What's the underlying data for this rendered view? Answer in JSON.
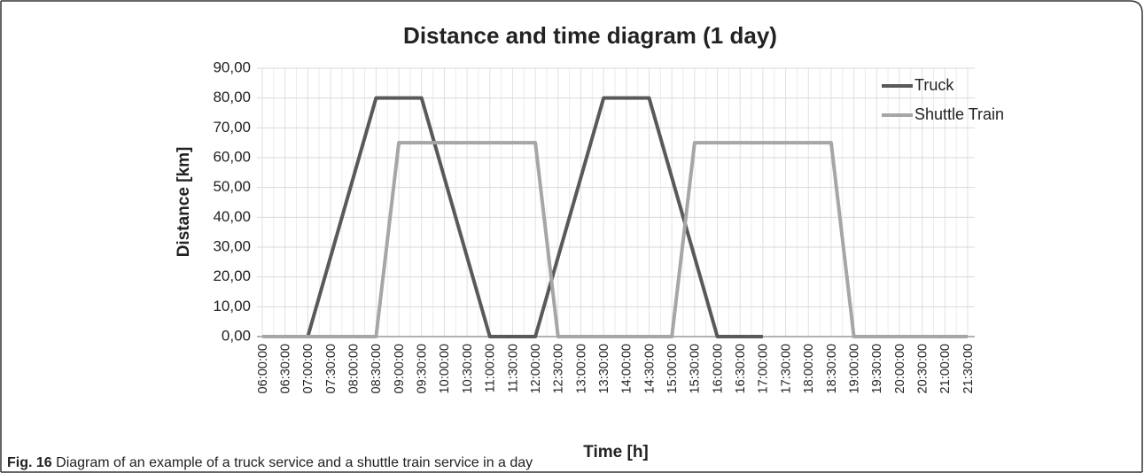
{
  "chart_data": {
    "type": "line",
    "title": "Distance and time diagram (1 day)",
    "x_label": "Time [h]",
    "y_label": "Distance [km]",
    "categories": [
      "06:00:00",
      "06:30:00",
      "07:00:00",
      "07:30:00",
      "08:00:00",
      "08:30:00",
      "09:00:00",
      "09:30:00",
      "10:00:00",
      "10:30:00",
      "11:00:00",
      "11:30:00",
      "12:00:00",
      "12:30:00",
      "13:00:00",
      "13:30:00",
      "14:00:00",
      "14:30:00",
      "15:00:00",
      "15:30:00",
      "16:00:00",
      "16:30:00",
      "17:00:00",
      "17:30:00",
      "18:00:00",
      "18:30:00",
      "19:00:00",
      "19:30:00",
      "20:00:00",
      "20:30:00",
      "21:00:00",
      "21:30:00"
    ],
    "series": [
      {
        "name": "Truck",
        "color": "#595959",
        "values": [
          0,
          0,
          0,
          26.67,
          53.33,
          80,
          80,
          80,
          53.33,
          26.67,
          0,
          0,
          0,
          26.67,
          53.33,
          80,
          80,
          80,
          53.33,
          26.67,
          0,
          0,
          0,
          null,
          null,
          null,
          null,
          null,
          null,
          null,
          null,
          null
        ]
      },
      {
        "name": "Shuttle Train",
        "color": "#a6a6a6",
        "values": [
          0,
          0,
          0,
          0,
          0,
          0,
          65,
          65,
          65,
          65,
          65,
          65,
          65,
          0,
          0,
          0,
          0,
          0,
          0,
          65,
          65,
          65,
          65,
          65,
          65,
          65,
          0,
          0,
          0,
          0,
          0,
          0
        ]
      }
    ],
    "ylim": [
      0,
      90
    ],
    "yticks": [
      {
        "value": 0,
        "label": "0,00"
      },
      {
        "value": 10,
        "label": "10,00"
      },
      {
        "value": 20,
        "label": "20,00"
      },
      {
        "value": 30,
        "label": "30,00"
      },
      {
        "value": 40,
        "label": "40,00"
      },
      {
        "value": 50,
        "label": "50,00"
      },
      {
        "value": 60,
        "label": "60,00"
      },
      {
        "value": 70,
        "label": "70,00"
      },
      {
        "value": 80,
        "label": "80,00"
      },
      {
        "value": 90,
        "label": "90,00"
      }
    ],
    "grid": true,
    "legend": "top-right"
  },
  "caption": {
    "label": "Fig. 16",
    "text": "Diagram of an example of a truck service and a shuttle train service in a day"
  }
}
